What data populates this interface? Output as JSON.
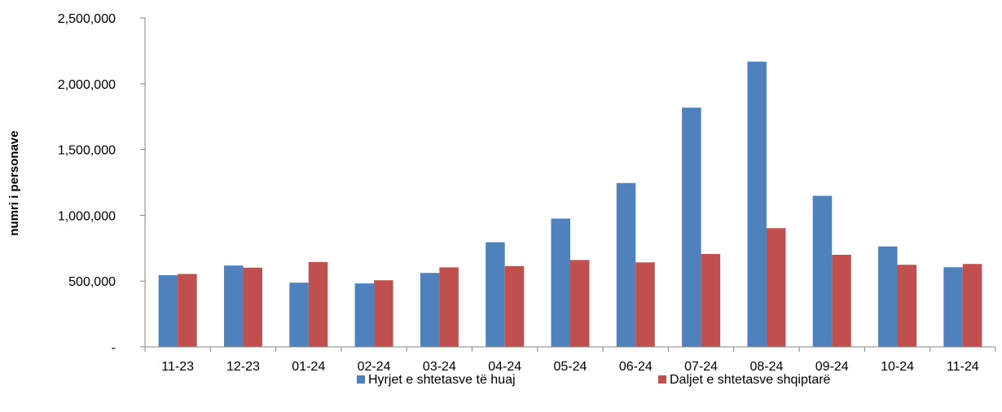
{
  "chart_data": {
    "type": "bar",
    "categories": [
      "11-23",
      "12-23",
      "01-24",
      "02-24",
      "03-24",
      "04-24",
      "05-24",
      "06-24",
      "07-24",
      "08-24",
      "09-24",
      "10-24",
      "11-24"
    ],
    "series": [
      {
        "name": "Hyrjet e shtetasve të huaj",
        "color": "#4f81bd",
        "values": [
          545000,
          618000,
          488000,
          482000,
          562000,
          795000,
          975000,
          1245000,
          1818000,
          2168000,
          1148000,
          763000,
          605000
        ]
      },
      {
        "name": "Daljet e shtetasve shqiptarë",
        "color": "#c0504d",
        "values": [
          554000,
          602000,
          645000,
          506000,
          604000,
          614000,
          660000,
          642000,
          706000,
          902000,
          700000,
          624000,
          630000
        ]
      }
    ],
    "ylabel": "numri i personave",
    "ylim": [
      0,
      2500000
    ],
    "yticks": [
      {
        "value": 0,
        "label": "-"
      },
      {
        "value": 500000,
        "label": "500,000"
      },
      {
        "value": 1000000,
        "label": "1,000,000"
      },
      {
        "value": 1500000,
        "label": "1,500,000"
      },
      {
        "value": 2000000,
        "label": "2,000,000"
      },
      {
        "value": 2500000,
        "label": "2,500,000"
      }
    ],
    "grid": false,
    "legend_position": "bottom"
  }
}
